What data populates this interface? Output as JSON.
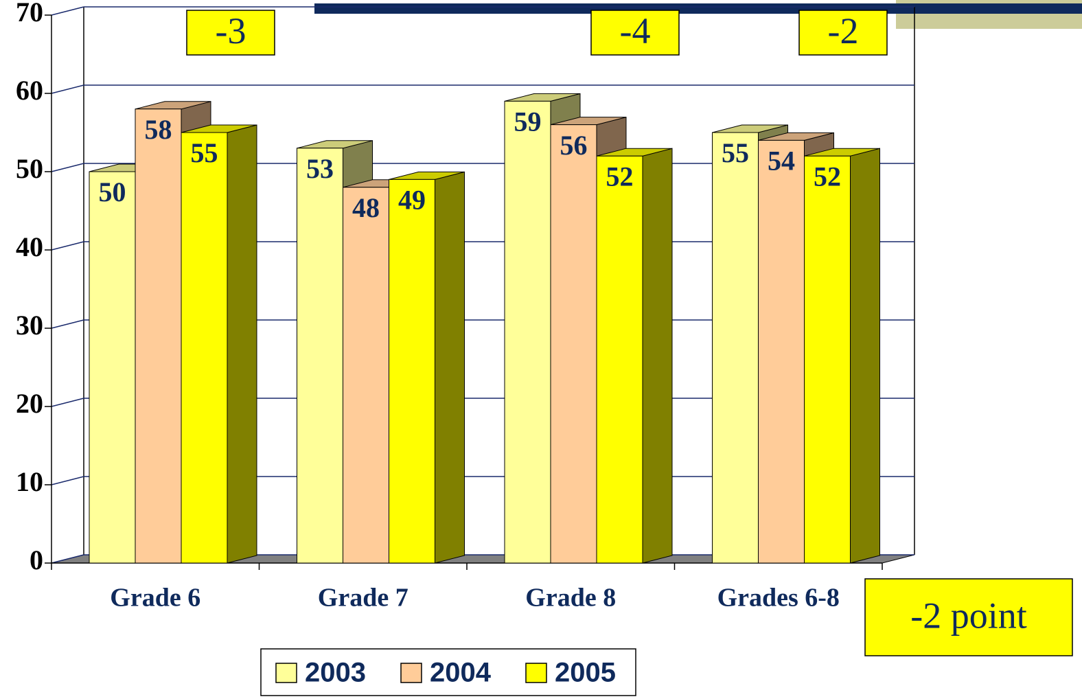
{
  "chart_data": {
    "type": "bar3d",
    "categories": [
      "Grade 6",
      "Grade 7",
      "Grade 8",
      "Grades 6-8"
    ],
    "series": [
      {
        "name": "2003",
        "color": "#ffff99",
        "values": [
          50,
          53,
          59,
          55
        ]
      },
      {
        "name": "2004",
        "color": "#ffcc99",
        "values": [
          58,
          48,
          56,
          54
        ]
      },
      {
        "name": "2005",
        "color": "#ffff00",
        "values": [
          55,
          49,
          52,
          52
        ]
      }
    ],
    "ylim": [
      0,
      70
    ],
    "yticks": [
      0,
      10,
      20,
      30,
      40,
      50,
      60,
      70
    ],
    "grid": true,
    "legend": "bottom",
    "annotations": [
      "-3",
      "-4",
      "-2",
      "-2 point"
    ]
  }
}
